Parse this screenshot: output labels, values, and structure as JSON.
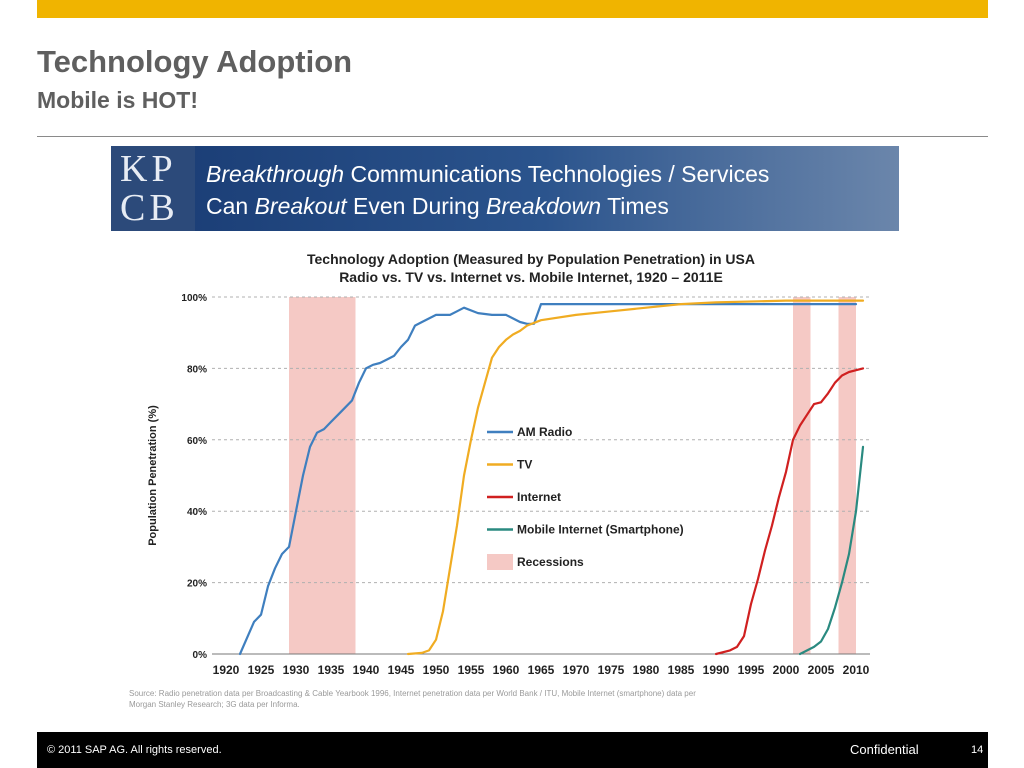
{
  "slide": {
    "title": "Technology Adoption",
    "subtitle": "Mobile is HOT!",
    "footer": {
      "copyright": "© 2011 SAP AG. All rights reserved.",
      "confidential": "Confidential",
      "page": "14"
    },
    "colors": {
      "accent": "#f0b400",
      "title_text": "#5f5f5f"
    }
  },
  "banner": {
    "logo": [
      "KP",
      "CB"
    ],
    "line1": {
      "pre": "",
      "em": "Breakthrough",
      "post": " Communications Technologies / Services"
    },
    "line2": {
      "pre": "Can ",
      "em": "Breakout",
      "mid": " Even During ",
      "em2": "Breakdown",
      "post": " Times"
    }
  },
  "chart_data": {
    "type": "line",
    "title": "Technology Adoption (Measured by Population Penetration) in USA",
    "subtitle": "Radio vs. TV vs. Internet vs. Mobile Internet, 1920 – 2011E",
    "xlabel": "",
    "ylabel": "Population Penetration (%)",
    "xlim": [
      1918,
      2012
    ],
    "ylim": [
      0,
      100
    ],
    "xticks": [
      1920,
      1925,
      1930,
      1935,
      1940,
      1945,
      1950,
      1955,
      1960,
      1965,
      1970,
      1975,
      1980,
      1985,
      1990,
      1995,
      2000,
      2005,
      2010
    ],
    "yticks": [
      0,
      20,
      40,
      60,
      80,
      100
    ],
    "ytick_labels": [
      "0%",
      "20%",
      "40%",
      "60%",
      "80%",
      "100%"
    ],
    "grid": "horizontal-dashed",
    "recessions": [
      [
        1929,
        1938.5
      ],
      [
        2001,
        2003.5
      ],
      [
        2007.5,
        2010
      ]
    ],
    "series": [
      {
        "name": "AM Radio",
        "color": "#3f7fbf",
        "x": [
          1922,
          1924,
          1925,
          1926,
          1927,
          1928,
          1929,
          1930,
          1931,
          1932,
          1933,
          1934,
          1935,
          1936,
          1937,
          1938,
          1939,
          1940,
          1941,
          1942,
          1943,
          1944,
          1945,
          1946,
          1947,
          1948,
          1950,
          1952,
          1953,
          1954,
          1956,
          1958,
          1960,
          1962,
          1963,
          1964,
          1965,
          1970,
          1980,
          1990,
          2000,
          2010
        ],
        "y": [
          0,
          9,
          11,
          19,
          24,
          28,
          30,
          40,
          50,
          58,
          62,
          63,
          65,
          67,
          69,
          71,
          76,
          80,
          81,
          81.5,
          82.5,
          83.5,
          86,
          88,
          92,
          93,
          95,
          95,
          96,
          97,
          95.5,
          95,
          95,
          93,
          92.5,
          92.5,
          98,
          98,
          98,
          98,
          98,
          98
        ]
      },
      {
        "name": "TV",
        "color": "#f0ac22",
        "x": [
          1946,
          1948,
          1949,
          1950,
          1951,
          1952,
          1953,
          1954,
          1955,
          1956,
          1957,
          1958,
          1959,
          1960,
          1961,
          1962,
          1963,
          1965,
          1970,
          1975,
          1980,
          1985,
          1990,
          2000,
          2011
        ],
        "y": [
          0,
          0.3,
          1,
          4,
          12,
          24,
          36,
          50,
          60,
          69,
          76,
          83,
          86,
          88,
          89.5,
          90.5,
          92,
          93.5,
          95,
          96,
          97,
          98,
          98.5,
          99,
          99
        ]
      },
      {
        "name": "Internet",
        "color": "#d02020",
        "x": [
          1990,
          1992,
          1993,
          1994,
          1995,
          1996,
          1997,
          1998,
          1999,
          2000,
          2001,
          2002,
          2003,
          2004,
          2005,
          2006,
          2007,
          2008,
          2009,
          2010,
          2011
        ],
        "y": [
          0,
          1,
          2,
          5,
          14,
          21,
          29,
          36,
          44,
          51,
          60,
          64,
          67,
          70,
          70.5,
          73,
          76,
          78,
          79,
          79.5,
          80
        ]
      },
      {
        "name": "Mobile Internet (Smartphone)",
        "color": "#2a8a80",
        "x": [
          2002,
          2004,
          2005,
          2006,
          2007,
          2008,
          2009,
          2010,
          2011
        ],
        "y": [
          0,
          2,
          3.5,
          7,
          13,
          20,
          28,
          40,
          58
        ]
      }
    ],
    "legend": {
      "position": "center",
      "items": [
        "AM Radio",
        "TV",
        "Internet",
        "Mobile Internet (Smartphone)",
        "Recessions"
      ],
      "recession_color": "#f5c9c5"
    },
    "source": [
      "Source: Radio penetration data per Broadcasting & Cable Yearbook 1996, Internet penetration data per World Bank / ITU, Mobile Internet (smartphone) data per",
      "Morgan Stanley Research; 3G data per Informa."
    ]
  }
}
